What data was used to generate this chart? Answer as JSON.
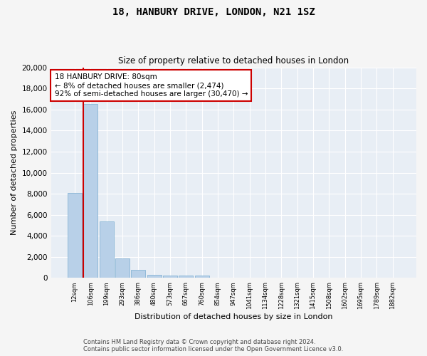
{
  "title1": "18, HANBURY DRIVE, LONDON, N21 1SZ",
  "title2": "Size of property relative to detached houses in London",
  "xlabel": "Distribution of detached houses by size in London",
  "ylabel": "Number of detached properties",
  "categories": [
    "12sqm",
    "106sqm",
    "199sqm",
    "293sqm",
    "386sqm",
    "480sqm",
    "573sqm",
    "667sqm",
    "760sqm",
    "854sqm",
    "947sqm",
    "1041sqm",
    "1134sqm",
    "1228sqm",
    "1321sqm",
    "1415sqm",
    "1508sqm",
    "1602sqm",
    "1695sqm",
    "1789sqm",
    "1882sqm"
  ],
  "values": [
    8100,
    16500,
    5400,
    1850,
    750,
    320,
    260,
    200,
    200,
    0,
    0,
    0,
    0,
    0,
    0,
    0,
    0,
    0,
    0,
    0,
    0
  ],
  "bar_color": "#b8d0e8",
  "bar_edge_color": "#7aacd0",
  "annotation_title": "18 HANBURY DRIVE: 80sqm",
  "annotation_line1": "← 8% of detached houses are smaller (2,474)",
  "annotation_line2": "92% of semi-detached houses are larger (30,470) →",
  "annotation_box_color": "#cc0000",
  "ylim": [
    0,
    20000
  ],
  "yticks": [
    0,
    2000,
    4000,
    6000,
    8000,
    10000,
    12000,
    14000,
    16000,
    18000,
    20000
  ],
  "bg_color": "#e8eef5",
  "grid_color": "#ffffff",
  "fig_bg_color": "#f5f5f5",
  "footnote1": "Contains HM Land Registry data © Crown copyright and database right 2024.",
  "footnote2": "Contains public sector information licensed under the Open Government Licence v3.0."
}
